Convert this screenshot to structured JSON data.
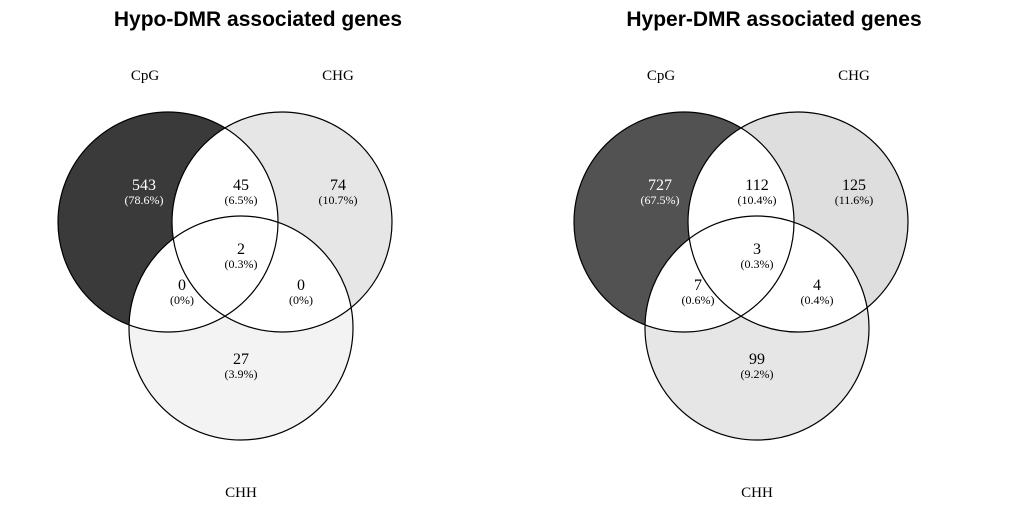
{
  "chart_data": [
    {
      "type": "venn",
      "title": "Hypo-DMR associated genes",
      "sets": [
        "CpG",
        "CHG",
        "CHH"
      ],
      "set_colors": {
        "CpG": "#3a3a3a",
        "CHG": "#e6e6e6",
        "CHH": "#f3f3f3"
      },
      "regions": {
        "cpg_only": {
          "count": "543",
          "pct": "(78.6%)"
        },
        "chg_only": {
          "count": "74",
          "pct": "(10.7%)"
        },
        "chh_only": {
          "count": "27",
          "pct": "(3.9%)"
        },
        "cpg_chg": {
          "count": "45",
          "pct": "(6.5%)"
        },
        "cpg_chh": {
          "count": "0",
          "pct": "(0%)"
        },
        "chg_chh": {
          "count": "0",
          "pct": "(0%)"
        },
        "all": {
          "count": "2",
          "pct": "(0.3%)"
        }
      }
    },
    {
      "type": "venn",
      "title": "Hyper-DMR associated genes",
      "sets": [
        "CpG",
        "CHG",
        "CHH"
      ],
      "set_colors": {
        "CpG": "#525252",
        "CHG": "#dedede",
        "CHH": "#e6e6e6"
      },
      "regions": {
        "cpg_only": {
          "count": "727",
          "pct": "(67.5%)"
        },
        "chg_only": {
          "count": "125",
          "pct": "(11.6%)"
        },
        "chh_only": {
          "count": "99",
          "pct": "(9.2%)"
        },
        "cpg_chg": {
          "count": "112",
          "pct": "(10.4%)"
        },
        "cpg_chh": {
          "count": "7",
          "pct": "(0.6%)"
        },
        "chg_chh": {
          "count": "4",
          "pct": "(0.4%)"
        },
        "all": {
          "count": "3",
          "pct": "(0.3%)"
        }
      }
    }
  ]
}
